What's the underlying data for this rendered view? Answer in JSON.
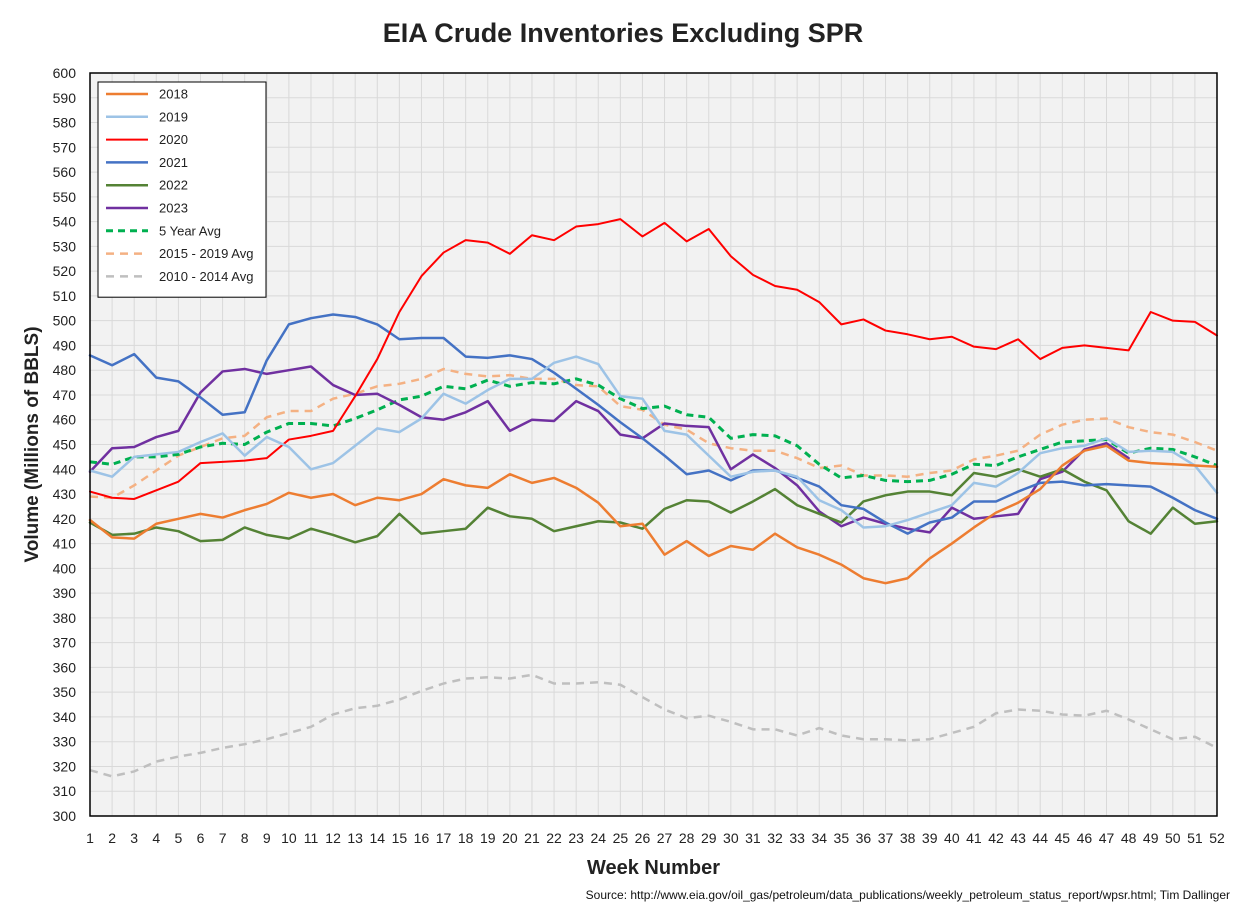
{
  "chart_data": {
    "type": "line",
    "title": "EIA Crude Inventories Excluding SPR",
    "xlabel": "Week Number",
    "ylabel": "Volume (Millions of BBLS)",
    "x": [
      1,
      2,
      3,
      4,
      5,
      6,
      7,
      8,
      9,
      10,
      11,
      12,
      13,
      14,
      15,
      16,
      17,
      18,
      19,
      20,
      21,
      22,
      23,
      24,
      25,
      26,
      27,
      28,
      29,
      30,
      31,
      32,
      33,
      34,
      35,
      36,
      37,
      38,
      39,
      40,
      41,
      42,
      43,
      44,
      45,
      46,
      47,
      48,
      49,
      50,
      51,
      52
    ],
    "xlim": [
      1,
      52
    ],
    "ylim": [
      300,
      600
    ],
    "yticks_step": 10,
    "grid": true,
    "legend_position": "top-left",
    "series": [
      {
        "name": "2018",
        "color": "#ED7D31",
        "dash": "solid",
        "width": 2.5,
        "values": [
          419.5,
          412.5,
          412,
          418,
          420,
          422,
          420.5,
          423.5,
          426,
          430.5,
          428.5,
          430,
          425.5,
          428.5,
          427.5,
          430,
          436,
          433.5,
          432.5,
          438,
          434.5,
          436.5,
          432.5,
          426.5,
          417,
          418,
          405.5,
          411,
          405,
          409,
          407.5,
          414,
          408.5,
          405.5,
          401.5,
          396,
          394,
          396,
          404,
          410,
          416.5,
          422.5,
          426.5,
          432,
          441.5,
          447.5,
          449.5,
          443.5,
          442.5,
          442,
          441.5,
          441
        ]
      },
      {
        "name": "2019",
        "color": "#9DC3E6",
        "dash": "solid",
        "width": 2.5,
        "values": [
          439.5,
          437,
          445,
          446,
          447,
          451,
          454.5,
          445.5,
          453,
          449,
          440,
          442.5,
          449.5,
          456.5,
          455,
          460.5,
          470.5,
          466.5,
          472,
          476.5,
          476.5,
          483,
          485.5,
          482.5,
          469.5,
          468.5,
          455.5,
          454,
          445.5,
          437,
          439,
          439.5,
          437,
          427.5,
          423.5,
          416.5,
          417,
          419.5,
          422.5,
          425.5,
          434.5,
          433,
          438.5,
          446.5,
          448.5,
          449.5,
          452.5,
          447,
          447.5,
          447,
          441.5,
          430.5
        ]
      },
      {
        "name": "2020",
        "color": "#FF0000",
        "dash": "solid",
        "width": 2,
        "values": [
          431,
          428.5,
          428,
          431.5,
          435,
          442.5,
          443,
          443.5,
          444.5,
          452,
          453.5,
          455.5,
          469.5,
          484.5,
          503.5,
          518,
          527.5,
          532.5,
          531.5,
          527,
          534.5,
          532.5,
          538,
          539,
          541,
          534,
          539.5,
          532,
          537,
          526,
          518.5,
          514,
          512.5,
          507.5,
          498.5,
          500.5,
          496,
          494.5,
          492.5,
          493.5,
          489.5,
          488.5,
          492.5,
          484.5,
          489,
          490,
          489,
          488,
          503.5,
          500,
          499.5,
          494
        ]
      },
      {
        "name": "2021",
        "color": "#4472C4",
        "dash": "solid",
        "width": 2.5,
        "values": [
          486,
          482,
          486.5,
          477,
          475.5,
          469,
          462,
          463,
          484,
          498.5,
          501,
          502.5,
          501.5,
          498.5,
          492.5,
          493,
          493,
          485.5,
          485,
          486,
          484.5,
          479,
          472.5,
          466,
          459,
          452.5,
          445.5,
          438,
          439.5,
          435.5,
          439.5,
          439.5,
          436.5,
          433,
          425.5,
          424,
          418.5,
          414,
          418.5,
          420.5,
          427,
          427,
          431,
          434.5,
          435,
          433.5,
          434,
          433.5,
          433,
          428.5,
          423.5,
          420
        ]
      },
      {
        "name": "2022",
        "color": "#548235",
        "dash": "solid",
        "width": 2.5,
        "values": [
          418.5,
          413.5,
          414,
          416.5,
          415,
          411,
          411.5,
          416.5,
          413.5,
          412,
          416,
          413.5,
          410.5,
          413,
          422,
          414,
          415,
          416,
          424.5,
          421,
          420,
          415,
          417,
          419,
          418.5,
          416,
          424,
          427.5,
          427,
          422.5,
          427,
          432,
          425.5,
          422,
          418.5,
          427,
          429.5,
          431,
          431,
          429.5,
          438.5,
          437,
          440,
          437,
          440,
          435,
          431.5,
          419,
          414,
          424.5,
          418,
          419
        ]
      },
      {
        "name": "2023",
        "color": "#7030A0",
        "dash": "solid",
        "width": 2.5,
        "values": [
          439,
          448.5,
          449,
          453,
          455.5,
          471,
          479.5,
          480.5,
          478.5,
          480,
          481.5,
          474,
          470,
          470.5,
          466,
          461,
          460,
          463,
          467.5,
          455.5,
          460,
          459.5,
          467.5,
          463.5,
          454,
          452.5,
          458.5,
          457.5,
          457,
          440,
          446,
          440.5,
          433.5,
          423,
          417,
          420.5,
          418,
          416,
          414.5,
          424.5,
          420,
          421,
          422,
          436,
          439,
          448,
          450.5,
          444.5,
          null,
          null,
          null,
          null
        ]
      },
      {
        "name": "5 Year Avg",
        "color": "#00B050",
        "dash": "dashed",
        "width": 3,
        "values": [
          443,
          442,
          445,
          445,
          446,
          449,
          450.5,
          450,
          455,
          458.5,
          458.5,
          457.5,
          460.5,
          464,
          468,
          469.5,
          473.5,
          472.5,
          476,
          473.5,
          475,
          474.5,
          476.5,
          474,
          468.5,
          464.5,
          465.5,
          462,
          461,
          452.5,
          454,
          453.5,
          449.5,
          442,
          436.5,
          437.5,
          435.5,
          435,
          435.5,
          438,
          442,
          441.5,
          445,
          448,
          451,
          451.5,
          452,
          446.5,
          448.5,
          448,
          445,
          441.5
        ]
      },
      {
        "name": "2015 - 2019 Avg",
        "color": "#F4B183",
        "dash": "dashed",
        "width": 2.5,
        "values": [
          429,
          428.5,
          433.5,
          439.5,
          445.5,
          449,
          452.5,
          453.5,
          461,
          463.5,
          463.5,
          468.5,
          470.5,
          473.5,
          474.5,
          476.5,
          480.5,
          478.5,
          477.5,
          478,
          476.5,
          476.5,
          474,
          473.5,
          465.5,
          464,
          458,
          456,
          450.5,
          448.5,
          447.5,
          447.5,
          444.5,
          440.5,
          441.5,
          437.5,
          437.5,
          437,
          438.5,
          439.5,
          444,
          445.5,
          447.5,
          454,
          458,
          460,
          460.5,
          457,
          455,
          454,
          451,
          447.5
        ]
      },
      {
        "name": "2010 - 2014 Avg",
        "color": "#BFBFBF",
        "dash": "dashed",
        "width": 2.5,
        "values": [
          318.5,
          316,
          318,
          322,
          324,
          325.5,
          327.5,
          329,
          331,
          333.5,
          336,
          341,
          343.5,
          344.5,
          347,
          350.5,
          353.5,
          355.5,
          356,
          355.5,
          357,
          353.5,
          353.5,
          354,
          353,
          348,
          343,
          339.5,
          340.5,
          338,
          335,
          335,
          332.5,
          335.5,
          332.5,
          331,
          331,
          330.5,
          331,
          333.5,
          336,
          341.5,
          343,
          342.5,
          341,
          340.5,
          342.5,
          339,
          335,
          331,
          332,
          327.5
        ]
      }
    ],
    "source_note": "Source: http://www.eia.gov/oil_gas/petroleum/data_publications/weekly_petroleum_status_report/wpsr.html; Tim Dallinger"
  }
}
